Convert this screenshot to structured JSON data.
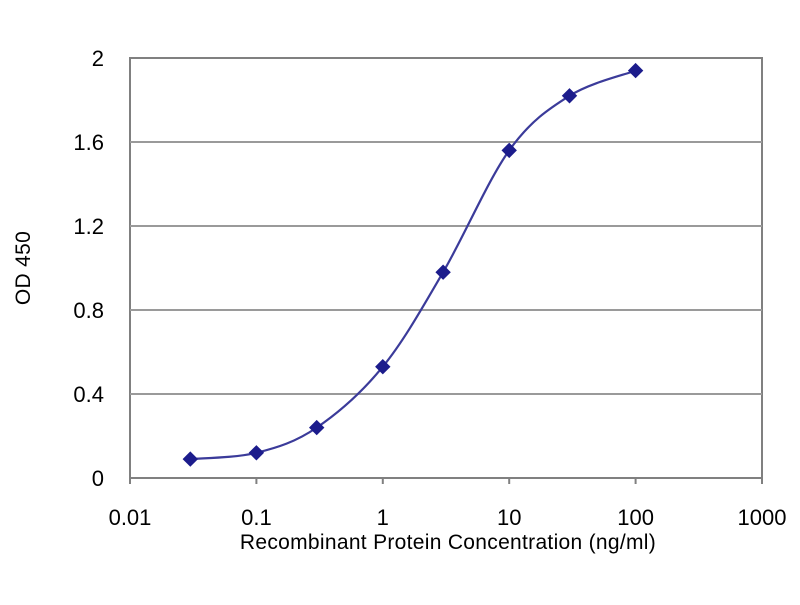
{
  "chart_data": {
    "type": "line",
    "title": "",
    "xlabel": "Recombinant Protein Concentration (ng/ml)",
    "ylabel": "OD 450",
    "x_scale": "log",
    "xlim": [
      0.01,
      1000
    ],
    "ylim": [
      0,
      2
    ],
    "x_ticks": [
      "0.01",
      "0.1",
      "1",
      "10",
      "100",
      "1000"
    ],
    "y_ticks": [
      "0",
      "0.4",
      "0.8",
      "1.2",
      "1.6",
      "2"
    ],
    "grid": "horizontal",
    "legend": "none",
    "series": [
      {
        "x": [
          0.03,
          0.1,
          0.3,
          1,
          3,
          10,
          30,
          100
        ],
        "y": [
          0.09,
          0.12,
          0.24,
          0.53,
          0.98,
          1.56,
          1.82,
          1.94
        ],
        "color": "#3b3b9a",
        "marker": "diamond",
        "marker_color": "#1c1c8c"
      }
    ]
  }
}
